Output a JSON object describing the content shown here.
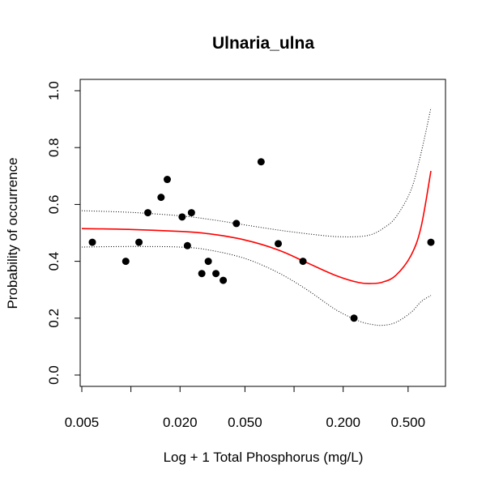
{
  "chart_data": {
    "type": "scatter",
    "title": "Ulnaria_ulna",
    "xlabel": "Log + 1 Total Phosphorus (mg/L)",
    "ylabel": "Probability of occurrence",
    "x_scale": "log",
    "xlim": [
      0.005,
      0.75
    ],
    "ylim": [
      0,
      1
    ],
    "x_ticks": [
      {
        "value": 0.005,
        "label": "0.005"
      },
      {
        "value": 0.01,
        "label": ""
      },
      {
        "value": 0.02,
        "label": "0.020"
      },
      {
        "value": 0.05,
        "label": "0.050"
      },
      {
        "value": 0.1,
        "label": ""
      },
      {
        "value": 0.2,
        "label": "0.200"
      },
      {
        "value": 0.5,
        "label": "0.500"
      }
    ],
    "y_ticks": [
      {
        "value": 0.0,
        "label": "0.0"
      },
      {
        "value": 0.2,
        "label": "0.2"
      },
      {
        "value": 0.4,
        "label": "0.4"
      },
      {
        "value": 0.6,
        "label": "0.6"
      },
      {
        "value": 0.8,
        "label": "0.8"
      },
      {
        "value": 1.0,
        "label": "1.0"
      }
    ],
    "grid": false,
    "points": [
      {
        "x": 0.0058,
        "y": 0.467
      },
      {
        "x": 0.0093,
        "y": 0.4
      },
      {
        "x": 0.0112,
        "y": 0.467
      },
      {
        "x": 0.0127,
        "y": 0.571
      },
      {
        "x": 0.0153,
        "y": 0.625
      },
      {
        "x": 0.0167,
        "y": 0.688
      },
      {
        "x": 0.0206,
        "y": 0.556
      },
      {
        "x": 0.0222,
        "y": 0.455
      },
      {
        "x": 0.0235,
        "y": 0.571
      },
      {
        "x": 0.0272,
        "y": 0.357
      },
      {
        "x": 0.0298,
        "y": 0.4
      },
      {
        "x": 0.0332,
        "y": 0.357
      },
      {
        "x": 0.0368,
        "y": 0.333
      },
      {
        "x": 0.0443,
        "y": 0.533
      },
      {
        "x": 0.0628,
        "y": 0.75
      },
      {
        "x": 0.08,
        "y": 0.462
      },
      {
        "x": 0.1134,
        "y": 0.4
      },
      {
        "x": 0.233,
        "y": 0.2
      },
      {
        "x": 0.69,
        "y": 0.467
      }
    ],
    "fit": {
      "color": "#ff0000",
      "x": [
        0.005,
        0.01,
        0.02,
        0.03,
        0.05,
        0.08,
        0.12,
        0.18,
        0.25,
        0.3,
        0.35,
        0.42,
        0.52,
        0.6,
        0.69
      ],
      "y": [
        0.515,
        0.512,
        0.505,
        0.497,
        0.475,
        0.44,
        0.395,
        0.35,
        0.325,
        0.322,
        0.327,
        0.35,
        0.42,
        0.52,
        0.718
      ]
    },
    "ci_upper": {
      "x": [
        0.005,
        0.01,
        0.02,
        0.03,
        0.05,
        0.08,
        0.12,
        0.18,
        0.25,
        0.3,
        0.35,
        0.42,
        0.52,
        0.6,
        0.69
      ],
      "y": [
        0.578,
        0.572,
        0.56,
        0.548,
        0.528,
        0.51,
        0.497,
        0.487,
        0.487,
        0.495,
        0.515,
        0.555,
        0.65,
        0.78,
        0.94
      ]
    },
    "ci_lower": {
      "x": [
        0.005,
        0.01,
        0.02,
        0.03,
        0.05,
        0.08,
        0.12,
        0.18,
        0.25,
        0.3,
        0.35,
        0.42,
        0.52,
        0.6,
        0.69
      ],
      "y": [
        0.45,
        0.452,
        0.45,
        0.44,
        0.41,
        0.36,
        0.3,
        0.23,
        0.19,
        0.178,
        0.175,
        0.185,
        0.22,
        0.258,
        0.28
      ]
    }
  }
}
